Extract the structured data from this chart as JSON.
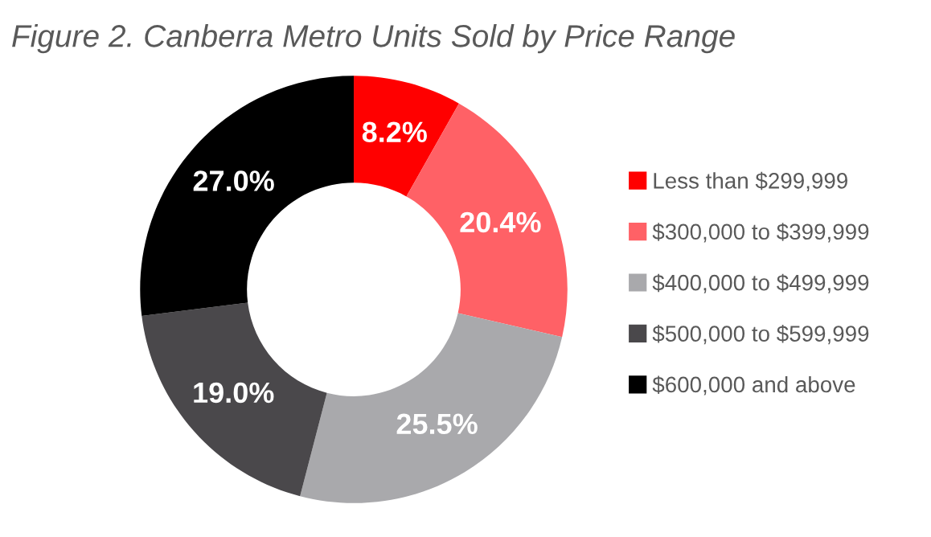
{
  "chart_data": {
    "type": "donut",
    "title": "Figure 2. Canberra Metro Units Sold by Price Range",
    "categories": [
      "Less than $299,999",
      "$300,000 to $399,999",
      "$400,000 to $499,999",
      "$500,000 to $599,999",
      "$600,000 and above"
    ],
    "values": [
      8.2,
      20.4,
      25.5,
      19.0,
      27.0
    ],
    "value_labels": [
      "8.2%",
      "20.4%",
      "25.5%",
      "19.0%",
      "27.0%"
    ],
    "colors": [
      "#ff0000",
      "#ff6166",
      "#a9a9ac",
      "#4a484b",
      "#000000"
    ],
    "legend": "right"
  }
}
